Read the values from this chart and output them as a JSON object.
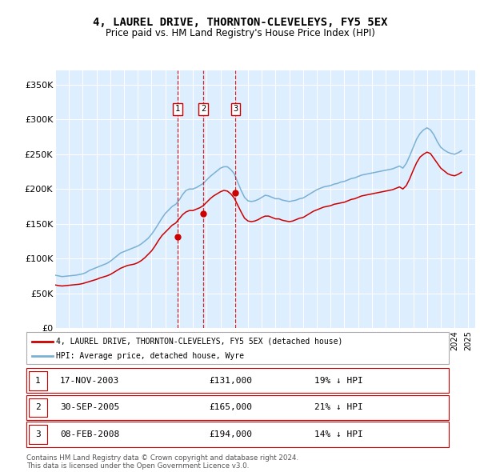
{
  "title": "4, LAUREL DRIVE, THORNTON-CLEVELEYS, FY5 5EX",
  "subtitle": "Price paid vs. HM Land Registry's House Price Index (HPI)",
  "ylabel_ticks": [
    "£0",
    "£50K",
    "£100K",
    "£150K",
    "£200K",
    "£250K",
    "£300K",
    "£350K"
  ],
  "ytick_values": [
    0,
    50000,
    100000,
    150000,
    200000,
    250000,
    300000,
    350000
  ],
  "ylim": [
    0,
    370000
  ],
  "xlim_start": 1995.0,
  "xlim_end": 2025.5,
  "background_color": "#ddeeff",
  "grid_color": "#ffffff",
  "red_line_color": "#cc0000",
  "blue_line_color": "#7ab0d4",
  "transaction_line_color": "#cc0000",
  "transactions": [
    {
      "label": "1",
      "date_str": "17-NOV-2003",
      "price": 131000,
      "hpi_diff": "19% ↓ HPI",
      "x": 2003.88
    },
    {
      "label": "2",
      "date_str": "30-SEP-2005",
      "price": 165000,
      "hpi_diff": "21% ↓ HPI",
      "x": 2005.75
    },
    {
      "label": "3",
      "date_str": "08-FEB-2008",
      "price": 194000,
      "hpi_diff": "14% ↓ HPI",
      "x": 2008.1
    }
  ],
  "legend_label_red": "4, LAUREL DRIVE, THORNTON-CLEVELEYS, FY5 5EX (detached house)",
  "legend_label_blue": "HPI: Average price, detached house, Wyre",
  "footer": "Contains HM Land Registry data © Crown copyright and database right 2024.\nThis data is licensed under the Open Government Licence v3.0.",
  "hpi_data_x": [
    1995.0,
    1995.25,
    1995.5,
    1995.75,
    1996.0,
    1996.25,
    1996.5,
    1996.75,
    1997.0,
    1997.25,
    1997.5,
    1997.75,
    1998.0,
    1998.25,
    1998.5,
    1998.75,
    1999.0,
    1999.25,
    1999.5,
    1999.75,
    2000.0,
    2000.25,
    2000.5,
    2000.75,
    2001.0,
    2001.25,
    2001.5,
    2001.75,
    2002.0,
    2002.25,
    2002.5,
    2002.75,
    2003.0,
    2003.25,
    2003.5,
    2003.75,
    2004.0,
    2004.25,
    2004.5,
    2004.75,
    2005.0,
    2005.25,
    2005.5,
    2005.75,
    2006.0,
    2006.25,
    2006.5,
    2006.75,
    2007.0,
    2007.25,
    2007.5,
    2007.75,
    2008.0,
    2008.25,
    2008.5,
    2008.75,
    2009.0,
    2009.25,
    2009.5,
    2009.75,
    2010.0,
    2010.25,
    2010.5,
    2010.75,
    2011.0,
    2011.25,
    2011.5,
    2011.75,
    2012.0,
    2012.25,
    2012.5,
    2012.75,
    2013.0,
    2013.25,
    2013.5,
    2013.75,
    2014.0,
    2014.25,
    2014.5,
    2014.75,
    2015.0,
    2015.25,
    2015.5,
    2015.75,
    2016.0,
    2016.25,
    2016.5,
    2016.75,
    2017.0,
    2017.25,
    2017.5,
    2017.75,
    2018.0,
    2018.25,
    2018.5,
    2018.75,
    2019.0,
    2019.25,
    2019.5,
    2019.75,
    2020.0,
    2020.25,
    2020.5,
    2020.75,
    2021.0,
    2021.25,
    2021.5,
    2021.75,
    2022.0,
    2022.25,
    2022.5,
    2022.75,
    2023.0,
    2023.25,
    2023.5,
    2023.75,
    2024.0,
    2024.25,
    2024.5
  ],
  "hpi_data_y": [
    76000,
    75000,
    74000,
    74500,
    75000,
    75500,
    76000,
    77000,
    78000,
    80000,
    83000,
    85000,
    87000,
    89000,
    91000,
    93000,
    96000,
    100000,
    104000,
    108000,
    110000,
    112000,
    114000,
    116000,
    118000,
    121000,
    125000,
    129000,
    135000,
    142000,
    150000,
    158000,
    165000,
    170000,
    175000,
    178000,
    184000,
    192000,
    198000,
    200000,
    200000,
    202000,
    205000,
    208000,
    213000,
    218000,
    222000,
    226000,
    230000,
    232000,
    232000,
    228000,
    222000,
    210000,
    198000,
    188000,
    183000,
    182000,
    183000,
    185000,
    188000,
    191000,
    190000,
    188000,
    186000,
    186000,
    184000,
    183000,
    182000,
    183000,
    184000,
    186000,
    187000,
    190000,
    193000,
    196000,
    199000,
    201000,
    203000,
    204000,
    205000,
    207000,
    208000,
    210000,
    211000,
    213000,
    215000,
    216000,
    218000,
    220000,
    221000,
    222000,
    223000,
    224000,
    225000,
    226000,
    227000,
    228000,
    229000,
    231000,
    233000,
    230000,
    237000,
    248000,
    260000,
    272000,
    280000,
    285000,
    288000,
    285000,
    278000,
    268000,
    260000,
    256000,
    253000,
    251000,
    250000,
    252000,
    255000
  ],
  "red_data_x": [
    1995.0,
    1995.25,
    1995.5,
    1995.75,
    1996.0,
    1996.25,
    1996.5,
    1996.75,
    1997.0,
    1997.25,
    1997.5,
    1997.75,
    1998.0,
    1998.25,
    1998.5,
    1998.75,
    1999.0,
    1999.25,
    1999.5,
    1999.75,
    2000.0,
    2000.25,
    2000.5,
    2000.75,
    2001.0,
    2001.25,
    2001.5,
    2001.75,
    2002.0,
    2002.25,
    2002.5,
    2002.75,
    2003.0,
    2003.25,
    2003.5,
    2003.75,
    2004.0,
    2004.25,
    2004.5,
    2004.75,
    2005.0,
    2005.25,
    2005.5,
    2005.75,
    2006.0,
    2006.25,
    2006.5,
    2006.75,
    2007.0,
    2007.25,
    2007.5,
    2007.75,
    2008.0,
    2008.25,
    2008.5,
    2008.75,
    2009.0,
    2009.25,
    2009.5,
    2009.75,
    2010.0,
    2010.25,
    2010.5,
    2010.75,
    2011.0,
    2011.25,
    2011.5,
    2011.75,
    2012.0,
    2012.25,
    2012.5,
    2012.75,
    2013.0,
    2013.25,
    2013.5,
    2013.75,
    2014.0,
    2014.25,
    2014.5,
    2014.75,
    2015.0,
    2015.25,
    2015.5,
    2015.75,
    2016.0,
    2016.25,
    2016.5,
    2016.75,
    2017.0,
    2017.25,
    2017.5,
    2017.75,
    2018.0,
    2018.25,
    2018.5,
    2018.75,
    2019.0,
    2019.25,
    2019.5,
    2019.75,
    2020.0,
    2020.25,
    2020.5,
    2020.75,
    2021.0,
    2021.25,
    2021.5,
    2021.75,
    2022.0,
    2022.25,
    2022.5,
    2022.75,
    2023.0,
    2023.25,
    2023.5,
    2023.75,
    2024.0,
    2024.25,
    2024.5
  ],
  "red_data_y": [
    62000,
    61000,
    60500,
    61000,
    61500,
    62000,
    62500,
    63000,
    64000,
    65500,
    67000,
    68500,
    70000,
    72000,
    73500,
    75000,
    77000,
    80000,
    83000,
    86000,
    88000,
    90000,
    91000,
    92000,
    94000,
    97000,
    101000,
    106000,
    111000,
    118000,
    126000,
    133000,
    138000,
    143000,
    148000,
    151000,
    157000,
    163000,
    167000,
    169000,
    169000,
    171000,
    173000,
    176000,
    181000,
    186000,
    190000,
    193000,
    196000,
    198000,
    197000,
    193000,
    187000,
    177000,
    167000,
    158000,
    154000,
    153000,
    154000,
    156000,
    159000,
    161000,
    161000,
    159000,
    157000,
    157000,
    155000,
    154000,
    153000,
    154000,
    156000,
    158000,
    159000,
    162000,
    165000,
    168000,
    170000,
    172000,
    174000,
    175000,
    176000,
    178000,
    179000,
    180000,
    181000,
    183000,
    185000,
    186000,
    188000,
    190000,
    191000,
    192000,
    193000,
    194000,
    195000,
    196000,
    197000,
    198000,
    199000,
    201000,
    203000,
    200000,
    205000,
    215000,
    227000,
    238000,
    246000,
    250000,
    253000,
    251000,
    244000,
    237000,
    230000,
    226000,
    222000,
    220000,
    219000,
    221000,
    224000
  ]
}
